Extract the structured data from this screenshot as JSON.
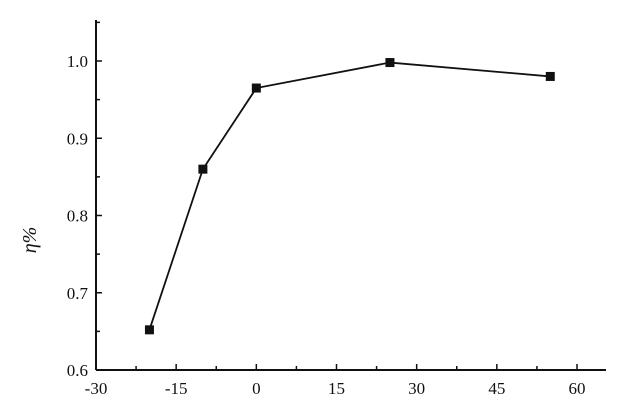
{
  "chart_data": {
    "type": "line",
    "title": "",
    "xlabel": "",
    "ylabel": "η%",
    "xlim": [
      -30,
      65
    ],
    "ylim": [
      0.6,
      1.05
    ],
    "xticks": [
      -30,
      -15,
      0,
      15,
      30,
      45,
      60
    ],
    "xtick_labels": [
      "-30",
      "-15",
      "0",
      "15",
      "30",
      "45",
      "60"
    ],
    "yticks": [
      0.6,
      0.7,
      0.8,
      0.9,
      1.0
    ],
    "ytick_labels": [
      "0.6",
      "0.7",
      "0.8",
      "0.9",
      "1.0"
    ],
    "grid": false,
    "marker": "square",
    "series": [
      {
        "x": [
          -20,
          -10,
          0,
          25,
          55
        ],
        "y": [
          0.652,
          0.86,
          0.965,
          0.998,
          0.98
        ],
        "color": "#111111"
      }
    ]
  }
}
